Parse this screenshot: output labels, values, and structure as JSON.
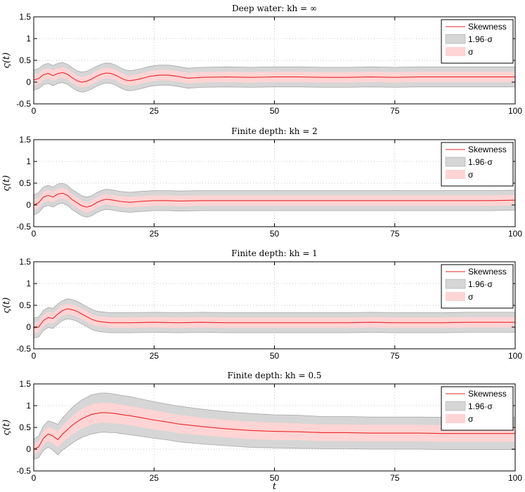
{
  "chart_data": [
    {
      "type": "area",
      "title": "Deep water: kh = ∞",
      "xlabel": "",
      "ylabel": "ς(t)",
      "xlim": [
        0,
        100
      ],
      "ylim": [
        -0.5,
        1.5
      ],
      "xticks": [
        "0",
        "25",
        "50",
        "75",
        "100"
      ],
      "yticks": [
        "-0.5",
        "0",
        "0.5",
        "1",
        "1.5"
      ],
      "grid": true,
      "legend_position": "top-right",
      "legend": [
        "Skewness",
        "1.96·σ",
        "σ"
      ],
      "x": [
        0,
        1,
        2,
        3,
        4,
        5,
        6,
        7,
        8,
        9,
        10,
        11,
        12,
        13,
        14,
        15,
        16,
        17,
        18,
        19,
        20,
        22,
        24,
        26,
        28,
        30,
        32,
        35,
        40,
        45,
        50,
        55,
        60,
        65,
        70,
        75,
        80,
        85,
        90,
        95,
        100
      ],
      "series": [
        {
          "name": "Skewness",
          "values": [
            0.05,
            0.08,
            0.17,
            0.2,
            0.15,
            0.2,
            0.22,
            0.18,
            0.1,
            0.03,
            0.0,
            0.02,
            0.07,
            0.13,
            0.18,
            0.21,
            0.2,
            0.16,
            0.1,
            0.05,
            0.03,
            0.07,
            0.13,
            0.16,
            0.16,
            0.13,
            0.09,
            0.11,
            0.12,
            0.11,
            0.12,
            0.12,
            0.11,
            0.11,
            0.12,
            0.11,
            0.12,
            0.12,
            0.12,
            0.12,
            0.12
          ]
        },
        {
          "name": "σ",
          "values": [
            0.12,
            0.12,
            0.12,
            0.12,
            0.12,
            0.12,
            0.12,
            0.12,
            0.12,
            0.12,
            0.12,
            0.12,
            0.12,
            0.12,
            0.12,
            0.12,
            0.12,
            0.12,
            0.12,
            0.12,
            0.12,
            0.12,
            0.12,
            0.12,
            0.12,
            0.12,
            0.12,
            0.12,
            0.12,
            0.12,
            0.12,
            0.12,
            0.12,
            0.12,
            0.12,
            0.12,
            0.12,
            0.12,
            0.12,
            0.12,
            0.12
          ]
        },
        {
          "name": "1.96·σ",
          "values": [
            0.23,
            0.23,
            0.23,
            0.23,
            0.23,
            0.23,
            0.23,
            0.23,
            0.23,
            0.23,
            0.23,
            0.23,
            0.23,
            0.23,
            0.23,
            0.23,
            0.23,
            0.23,
            0.23,
            0.23,
            0.23,
            0.23,
            0.23,
            0.23,
            0.23,
            0.23,
            0.23,
            0.23,
            0.23,
            0.23,
            0.23,
            0.23,
            0.23,
            0.23,
            0.23,
            0.23,
            0.23,
            0.23,
            0.23,
            0.23,
            0.23
          ]
        }
      ]
    },
    {
      "type": "area",
      "title": "Finite depth: kh = 2",
      "xlabel": "",
      "ylabel": "ς(t)",
      "xlim": [
        0,
        100
      ],
      "ylim": [
        -0.5,
        1.5
      ],
      "xticks": [
        "0",
        "25",
        "50",
        "75",
        "100"
      ],
      "yticks": [
        "-0.5",
        "0",
        "0.5",
        "1",
        "1.5"
      ],
      "grid": true,
      "legend_position": "top-right",
      "legend": [
        "Skewness",
        "1.96·σ",
        "σ"
      ],
      "x": [
        0,
        1,
        2,
        3,
        4,
        5,
        6,
        7,
        8,
        9,
        10,
        11,
        12,
        13,
        14,
        15,
        16,
        17,
        18,
        20,
        22,
        25,
        28,
        30,
        35,
        40,
        45,
        50,
        55,
        60,
        65,
        70,
        75,
        80,
        85,
        90,
        95,
        100
      ],
      "series": [
        {
          "name": "Skewness",
          "values": [
            0.0,
            0.05,
            0.18,
            0.22,
            0.18,
            0.25,
            0.27,
            0.22,
            0.12,
            0.05,
            -0.02,
            -0.05,
            -0.02,
            0.05,
            0.1,
            0.13,
            0.12,
            0.1,
            0.08,
            0.06,
            0.08,
            0.1,
            0.1,
            0.09,
            0.1,
            0.1,
            0.1,
            0.1,
            0.1,
            0.1,
            0.1,
            0.1,
            0.1,
            0.1,
            0.1,
            0.1,
            0.1,
            0.11
          ]
        },
        {
          "name": "σ",
          "values": [
            0.12,
            0.12,
            0.12,
            0.12,
            0.12,
            0.12,
            0.12,
            0.12,
            0.12,
            0.12,
            0.12,
            0.12,
            0.12,
            0.12,
            0.12,
            0.12,
            0.12,
            0.12,
            0.12,
            0.12,
            0.12,
            0.12,
            0.12,
            0.12,
            0.12,
            0.12,
            0.12,
            0.12,
            0.12,
            0.12,
            0.12,
            0.12,
            0.12,
            0.12,
            0.12,
            0.12,
            0.12,
            0.12
          ]
        },
        {
          "name": "1.96·σ",
          "values": [
            0.23,
            0.23,
            0.23,
            0.23,
            0.23,
            0.23,
            0.23,
            0.23,
            0.23,
            0.23,
            0.23,
            0.23,
            0.23,
            0.23,
            0.23,
            0.23,
            0.23,
            0.23,
            0.23,
            0.23,
            0.23,
            0.23,
            0.23,
            0.23,
            0.23,
            0.23,
            0.23,
            0.23,
            0.23,
            0.23,
            0.23,
            0.23,
            0.23,
            0.23,
            0.23,
            0.23,
            0.23,
            0.23
          ]
        }
      ]
    },
    {
      "type": "area",
      "title": "Finite depth: kh = 1",
      "xlabel": "",
      "ylabel": "ς(t)",
      "xlim": [
        0,
        100
      ],
      "ylim": [
        -0.5,
        1.5
      ],
      "xticks": [
        "0",
        "25",
        "50",
        "75",
        "100"
      ],
      "yticks": [
        "-0.5",
        "0",
        "0.5",
        "1",
        "1.5"
      ],
      "grid": true,
      "legend_position": "top-right",
      "legend": [
        "Skewness",
        "1.96·σ",
        "σ"
      ],
      "x": [
        0,
        1,
        2,
        3,
        4,
        5,
        6,
        7,
        8,
        9,
        10,
        11,
        12,
        13,
        14,
        15,
        16,
        18,
        20,
        25,
        30,
        35,
        40,
        45,
        50,
        55,
        60,
        65,
        70,
        75,
        80,
        85,
        90,
        95,
        100
      ],
      "series": [
        {
          "name": "Skewness",
          "values": [
            -0.02,
            0.0,
            0.15,
            0.22,
            0.2,
            0.3,
            0.38,
            0.42,
            0.4,
            0.36,
            0.3,
            0.24,
            0.18,
            0.14,
            0.12,
            0.11,
            0.1,
            0.1,
            0.1,
            0.11,
            0.1,
            0.11,
            0.1,
            0.1,
            0.1,
            0.1,
            0.1,
            0.1,
            0.11,
            0.1,
            0.1,
            0.1,
            0.11,
            0.11,
            0.11
          ]
        },
        {
          "name": "σ",
          "values": [
            0.12,
            0.12,
            0.12,
            0.12,
            0.12,
            0.12,
            0.12,
            0.12,
            0.12,
            0.12,
            0.12,
            0.12,
            0.12,
            0.12,
            0.12,
            0.12,
            0.12,
            0.12,
            0.12,
            0.12,
            0.12,
            0.12,
            0.12,
            0.12,
            0.12,
            0.12,
            0.12,
            0.12,
            0.12,
            0.12,
            0.12,
            0.12,
            0.12,
            0.12,
            0.12
          ]
        },
        {
          "name": "1.96·σ",
          "values": [
            0.23,
            0.23,
            0.23,
            0.23,
            0.23,
            0.23,
            0.23,
            0.23,
            0.23,
            0.23,
            0.23,
            0.23,
            0.23,
            0.23,
            0.23,
            0.23,
            0.23,
            0.23,
            0.23,
            0.23,
            0.23,
            0.23,
            0.23,
            0.23,
            0.23,
            0.23,
            0.23,
            0.23,
            0.23,
            0.23,
            0.23,
            0.23,
            0.23,
            0.23,
            0.23
          ]
        }
      ]
    },
    {
      "type": "area",
      "title": "Finite depth: kh = 0.5",
      "xlabel": "t",
      "ylabel": "ς(t)",
      "xlim": [
        0,
        100
      ],
      "ylim": [
        -0.5,
        1.5
      ],
      "xticks": [
        "0",
        "25",
        "50",
        "75",
        "100"
      ],
      "yticks": [
        "-0.5",
        "0",
        "0.5",
        "1",
        "1.5"
      ],
      "grid": true,
      "legend_position": "top-right",
      "legend": [
        "Skewness",
        "1.96·σ",
        "σ"
      ],
      "x": [
        0,
        1,
        2,
        3,
        4,
        5,
        6,
        7,
        8,
        9,
        10,
        11,
        12,
        13,
        14,
        15,
        16,
        17,
        18,
        20,
        22,
        25,
        28,
        30,
        35,
        40,
        45,
        50,
        55,
        60,
        65,
        70,
        75,
        80,
        85,
        90,
        95,
        100
      ],
      "series": [
        {
          "name": "Skewness",
          "values": [
            0.0,
            0.05,
            0.25,
            0.35,
            0.3,
            0.22,
            0.35,
            0.45,
            0.55,
            0.63,
            0.7,
            0.75,
            0.8,
            0.82,
            0.84,
            0.84,
            0.83,
            0.82,
            0.8,
            0.77,
            0.73,
            0.67,
            0.62,
            0.58,
            0.52,
            0.47,
            0.43,
            0.41,
            0.4,
            0.38,
            0.38,
            0.37,
            0.37,
            0.37,
            0.36,
            0.36,
            0.36,
            0.36
          ]
        },
        {
          "name": "σ",
          "values": [
            0.12,
            0.13,
            0.15,
            0.16,
            0.17,
            0.18,
            0.19,
            0.2,
            0.21,
            0.22,
            0.22,
            0.23,
            0.23,
            0.23,
            0.23,
            0.23,
            0.23,
            0.23,
            0.22,
            0.22,
            0.22,
            0.22,
            0.21,
            0.21,
            0.2,
            0.2,
            0.2,
            0.2,
            0.19,
            0.19,
            0.19,
            0.19,
            0.19,
            0.19,
            0.19,
            0.19,
            0.19,
            0.19
          ]
        },
        {
          "name": "1.96·σ",
          "values": [
            0.23,
            0.25,
            0.28,
            0.3,
            0.32,
            0.35,
            0.37,
            0.39,
            0.41,
            0.42,
            0.43,
            0.44,
            0.45,
            0.45,
            0.45,
            0.45,
            0.45,
            0.44,
            0.44,
            0.44,
            0.43,
            0.42,
            0.41,
            0.41,
            0.4,
            0.39,
            0.39,
            0.38,
            0.38,
            0.37,
            0.37,
            0.37,
            0.37,
            0.37,
            0.37,
            0.37,
            0.37,
            0.37
          ]
        }
      ]
    }
  ],
  "colors": {
    "skewness_line": "#e8262b",
    "sigma_fill": "#ffd4d4",
    "ci_fill": "#d6d6d6",
    "ci_edge": "#a8a8a8",
    "grid": "#c8c8c8",
    "axes": "#000000"
  }
}
